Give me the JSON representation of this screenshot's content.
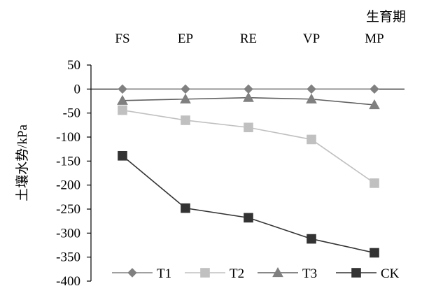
{
  "chart_data": {
    "type": "line",
    "title": "",
    "xlabel": "生育期",
    "ylabel": "土壤水势/kPa",
    "categories": [
      "FS",
      "EP",
      "RE",
      "VP",
      "MP"
    ],
    "ylim": [
      -400,
      50
    ],
    "yticks": [
      50,
      0,
      -50,
      -100,
      -150,
      -200,
      -250,
      -300,
      -350,
      -400
    ],
    "x_axis_position": "top",
    "grid": false,
    "legend_position": "bottom",
    "series": [
      {
        "name": "T1",
        "values": [
          0,
          0,
          0,
          0,
          0
        ],
        "color": "#808080",
        "line_color": "#808080",
        "marker": "diamond"
      },
      {
        "name": "T2",
        "values": [
          -44,
          -65,
          -80,
          -105,
          -196
        ],
        "color": "#c0c0c0",
        "line_color": "#c0c0c0",
        "marker": "square"
      },
      {
        "name": "T3",
        "values": [
          -24,
          -21,
          -18,
          -21,
          -33
        ],
        "color": "#808080",
        "line_color": "#606060",
        "marker": "triangle"
      },
      {
        "name": "CK",
        "values": [
          -139,
          -248,
          -268,
          -312,
          -341
        ],
        "color": "#333333",
        "line_color": "#333333",
        "marker": "square"
      }
    ]
  }
}
